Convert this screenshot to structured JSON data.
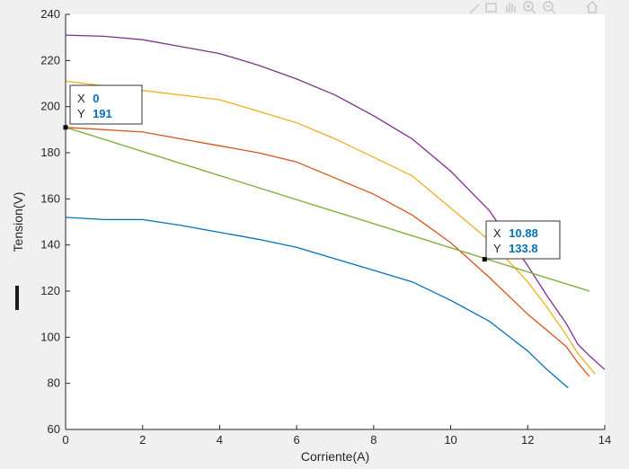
{
  "chart_data": {
    "type": "line",
    "xlabel": "Corriente(A)",
    "ylabel": "Tension(V)",
    "xlim": [
      0,
      14
    ],
    "ylim": [
      60,
      240
    ],
    "xticks": [
      "0",
      "2",
      "4",
      "6",
      "8",
      "10",
      "12",
      "14"
    ],
    "yticks": [
      "60",
      "80",
      "100",
      "120",
      "140",
      "160",
      "180",
      "200",
      "220",
      "240"
    ],
    "grid": false,
    "series": [
      {
        "color": "#7e2f8e",
        "x": [
          0,
          1,
          2,
          3,
          4,
          5,
          6,
          7,
          8,
          9,
          10,
          11,
          12,
          12.5,
          13,
          13.3,
          13.6,
          14
        ],
        "y": [
          231,
          230.5,
          229,
          226,
          223,
          218,
          212,
          205,
          196,
          186,
          172,
          155,
          131,
          118,
          106,
          97,
          92,
          86
        ]
      },
      {
        "color": "#edb120",
        "x": [
          0,
          1,
          2,
          3,
          4,
          5,
          6,
          7,
          8,
          9,
          10,
          11,
          12,
          12.5,
          13,
          13.3,
          13.6,
          13.75
        ],
        "y": [
          211,
          209,
          207,
          205,
          203,
          198,
          193,
          186,
          178,
          170,
          156,
          142,
          124,
          113,
          101,
          93,
          87,
          84
        ]
      },
      {
        "color": "#d95319",
        "x": [
          0,
          1,
          2,
          3,
          4,
          5,
          6,
          7,
          8,
          9,
          10,
          11,
          12,
          12.5,
          13,
          13.3,
          13.6
        ],
        "y": [
          191,
          190,
          189,
          186,
          183,
          180,
          176,
          169,
          162,
          153,
          141,
          126,
          110,
          103,
          96,
          89,
          83
        ]
      },
      {
        "color": "#77ac30",
        "x": [
          0,
          13.6
        ],
        "y": [
          191,
          120
        ]
      },
      {
        "color": "#0072bd",
        "x": [
          0,
          1,
          2,
          3,
          4,
          5,
          6,
          7,
          8,
          9,
          10,
          11,
          12,
          12.5,
          13.05
        ],
        "y": [
          152,
          151,
          151,
          148.5,
          145.5,
          142.5,
          139,
          134,
          129,
          124,
          116,
          107,
          94,
          86,
          78
        ]
      }
    ],
    "datatips": [
      {
        "x_label": "X",
        "x_value": "0",
        "y_label": "Y",
        "y_value": "191",
        "x": 0,
        "y": 191
      },
      {
        "x_label": "X",
        "x_value": "10.88",
        "y_label": "Y",
        "y_value": "133.8",
        "x": 10.88,
        "y": 133.8
      }
    ]
  },
  "toolbar": {
    "icons": [
      "brush-icon",
      "datatip-icon",
      "pan-icon",
      "zoom-in-icon",
      "zoom-out-icon",
      "home-icon"
    ]
  }
}
